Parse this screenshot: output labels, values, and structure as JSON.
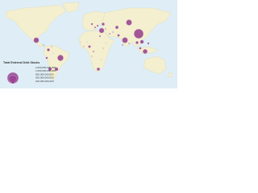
{
  "map": {
    "title": "Total External Debt Stocks",
    "bubble_color": "#8e2f86",
    "values": [
      1400000000000,
      560000000000,
      450000000000,
      500000000000,
      520000000000,
      400000000000,
      330000000000,
      200000000000,
      160000000000,
      130000000000,
      150000000000,
      120000000000,
      70000000000,
      170000000000,
      130000000000,
      60000000000,
      80000000000,
      210000000000,
      90000000000,
      40000000000,
      100000000000,
      50000000000,
      30000000000,
      25000000000,
      20000000000,
      35000000000,
      15000000000,
      12000000000,
      18000000000,
      22000000000,
      10000000000,
      28000000000,
      45000000000,
      9000000000,
      14000000000,
      16000000000,
      8000000000,
      11000000000,
      26000000000,
      60000000000
    ],
    "legend": [
      {
        "value": 2000000000000,
        "label": "2,000,000,000,000"
      },
      {
        "value": 1000000000000,
        "label": "1,000,000,000,000"
      },
      {
        "value": 500000000000,
        "label": "500,000,000,000"
      },
      {
        "value": 250000000000,
        "label": "250,000,000,000"
      },
      {
        "value": 100000000000,
        "label": "100,000,000,000"
      }
    ]
  }
}
